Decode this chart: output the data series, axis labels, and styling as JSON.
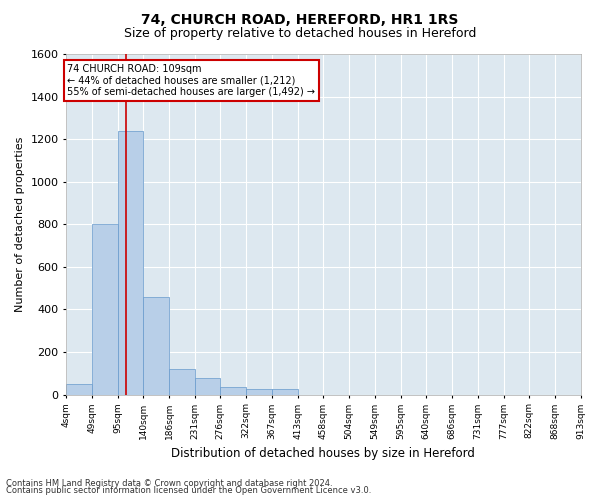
{
  "title1": "74, CHURCH ROAD, HEREFORD, HR1 1RS",
  "title2": "Size of property relative to detached houses in Hereford",
  "xlabel": "Distribution of detached houses by size in Hereford",
  "ylabel": "Number of detached properties",
  "property_label": "74 CHURCH ROAD: 109sqm",
  "pct_smaller": 44,
  "pct_smaller_n": "1,212",
  "pct_larger": 55,
  "pct_larger_n": "1,492",
  "bin_edges": [
    4,
    49,
    95,
    140,
    186,
    231,
    276,
    322,
    367,
    413,
    458,
    504,
    549,
    595,
    640,
    686,
    731,
    777,
    822,
    868,
    913
  ],
  "bin_labels": [
    "4sqm",
    "49sqm",
    "95sqm",
    "140sqm",
    "186sqm",
    "231sqm",
    "276sqm",
    "322sqm",
    "367sqm",
    "413sqm",
    "458sqm",
    "504sqm",
    "549sqm",
    "595sqm",
    "640sqm",
    "686sqm",
    "731sqm",
    "777sqm",
    "822sqm",
    "868sqm",
    "913sqm"
  ],
  "counts": [
    50,
    800,
    1240,
    460,
    120,
    80,
    35,
    25,
    25,
    0,
    0,
    0,
    0,
    0,
    0,
    0,
    0,
    0,
    0,
    0
  ],
  "bar_color": "#b8cfe8",
  "bar_edge_color": "#6699cc",
  "vline_color": "#cc0000",
  "vline_x": 109,
  "background_color": "#dde8f0",
  "grid_color": "#ffffff",
  "fig_bg_color": "#ffffff",
  "ylim": [
    0,
    1600
  ],
  "yticks": [
    0,
    200,
    400,
    600,
    800,
    1000,
    1200,
    1400,
    1600
  ],
  "footnote1": "Contains HM Land Registry data © Crown copyright and database right 2024.",
  "footnote2": "Contains public sector information licensed under the Open Government Licence v3.0.",
  "annotation_box_color": "#cc0000",
  "title1_fontsize": 10,
  "title2_fontsize": 9
}
